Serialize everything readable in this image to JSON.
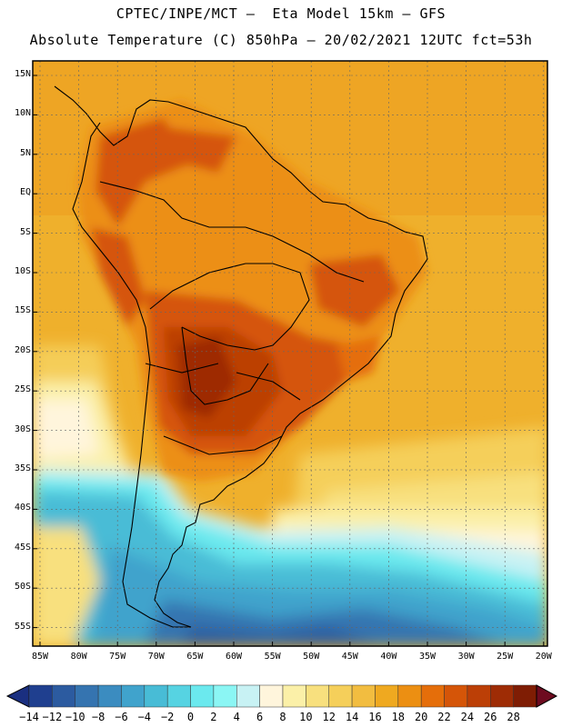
{
  "header": {
    "line1": "CPTEC/INPE/MCT –  Eta Model 15km – GFS",
    "line2": "Absolute Temperature (C) 850hPa – 20/02/2021 12UTC fct=53h"
  },
  "map": {
    "lat_labels": [
      "15N",
      "10N",
      "5N",
      "EQ",
      "5S",
      "10S",
      "15S",
      "20S",
      "25S",
      "30S",
      "35S",
      "40S",
      "45S",
      "50S",
      "55S"
    ],
    "lon_labels": [
      "85W",
      "80W",
      "75W",
      "70W",
      "65W",
      "60W",
      "55W",
      "50W",
      "45W",
      "40W",
      "35W",
      "30W",
      "25W",
      "20W"
    ]
  },
  "colorbar": {
    "labels": [
      "-14",
      "-12",
      "-10",
      "-8",
      "-6",
      "-4",
      "-2",
      "0",
      "2",
      "4",
      "6",
      "8",
      "10",
      "12",
      "14",
      "16",
      "18",
      "20",
      "22",
      "24",
      "26",
      "28"
    ],
    "colors": [
      "#1f3f8f",
      "#2c5ba0",
      "#3574b0",
      "#3b8cc0",
      "#40a3cc",
      "#48bcd6",
      "#56d3e2",
      "#6be9ee",
      "#8bf6f4",
      "#c8f2f4",
      "#fff5dc",
      "#fbf0a8",
      "#f8e07e",
      "#f5cf5a",
      "#f2bd40",
      "#efa920",
      "#ec8f12",
      "#e56e0a",
      "#d55508",
      "#bc3f06",
      "#9e2c05",
      "#7f1d04"
    ],
    "low_arrow_color": "#1a2f80",
    "high_arrow_color": "#6e0b20"
  }
}
